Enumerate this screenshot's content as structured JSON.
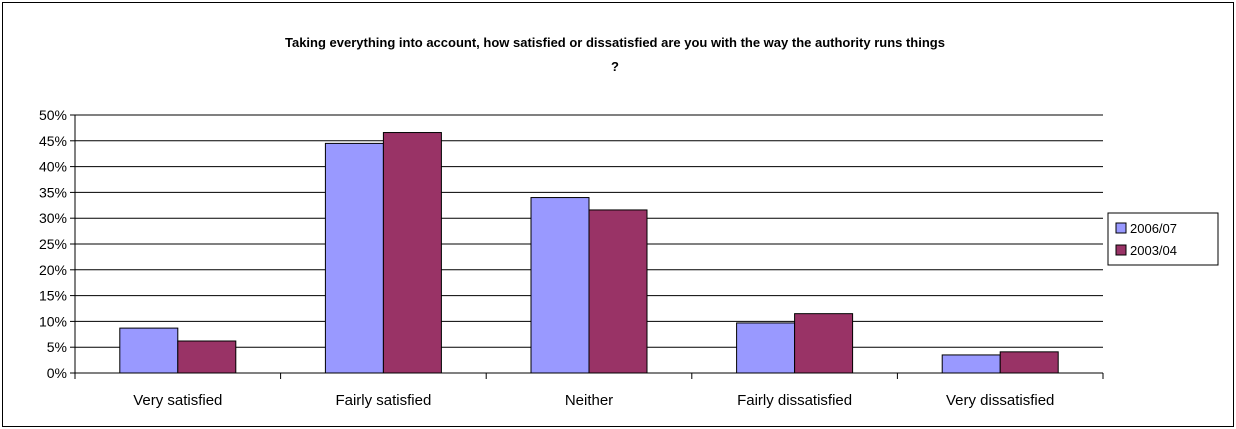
{
  "chart_data": {
    "type": "bar",
    "title": [
      "Taking everything into account, how satisfied or dissatisfied are you with the way the authority runs things",
      "?"
    ],
    "categories": [
      "Very satisfied",
      "Fairly satisfied",
      "Neither",
      "Fairly dissatisfied",
      "Very dissatisfied"
    ],
    "series": [
      {
        "name": "2006/07",
        "color": "#9999ff",
        "values": [
          8.7,
          44.5,
          34.0,
          9.7,
          3.5
        ]
      },
      {
        "name": "2003/04",
        "color": "#993366",
        "values": [
          6.2,
          46.6,
          31.6,
          11.5,
          4.1
        ]
      }
    ],
    "ylim": [
      0,
      50
    ],
    "yticks": [
      "0%",
      "5%",
      "10%",
      "15%",
      "20%",
      "25%",
      "30%",
      "35%",
      "40%",
      "45%",
      "50%"
    ],
    "grid": true,
    "legend": "right"
  }
}
